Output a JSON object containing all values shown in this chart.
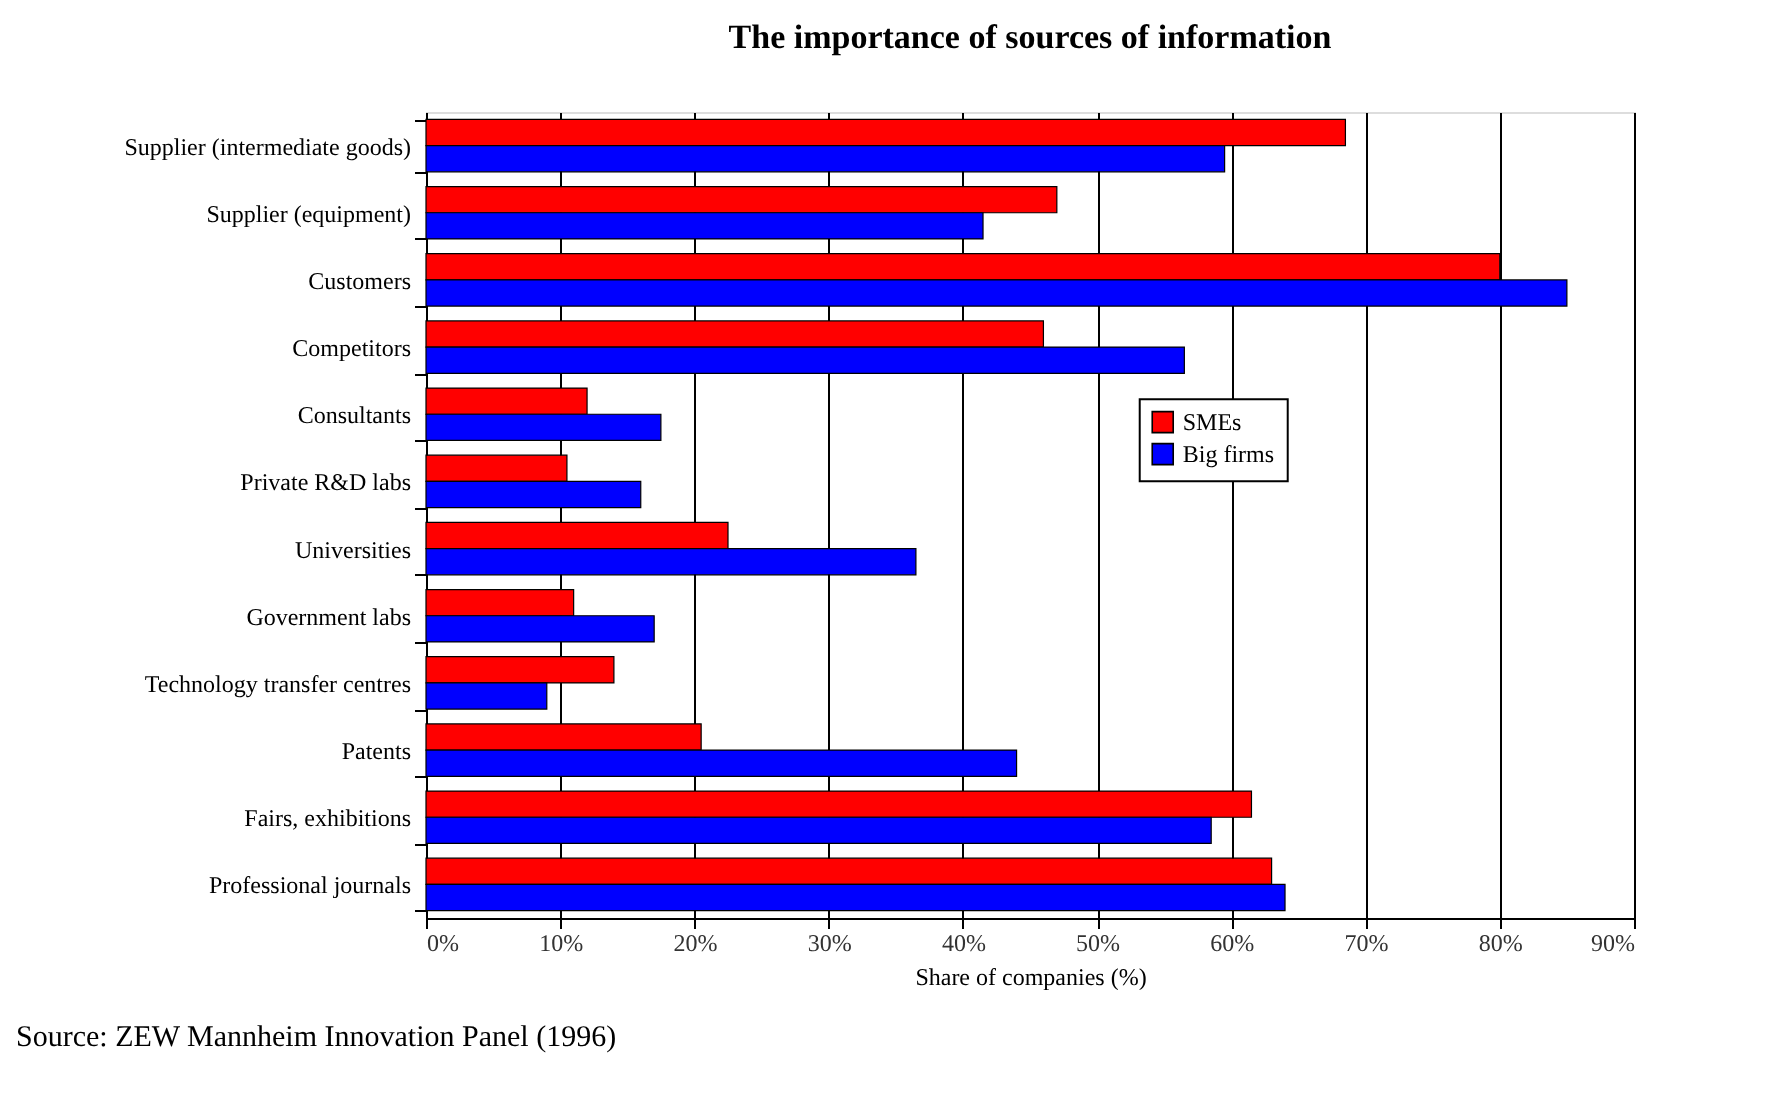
{
  "chart_data": {
    "type": "bar",
    "orientation": "horizontal",
    "title": "The importance of sources of information",
    "xlabel": "Share of companies (%)",
    "categories": [
      "Supplier (intermediate goods)",
      "Supplier (equipment)",
      "Customers",
      "Competitors",
      "Consultants",
      "Private R&D labs",
      "Universities",
      "Government labs",
      "Technology transfer centres",
      "Patents",
      "Fairs, exhibitions",
      "Professional journals"
    ],
    "series": [
      {
        "name": "SMEs",
        "color": "#ff0000",
        "values": [
          68.5,
          47,
          80,
          46,
          12,
          10.5,
          22.5,
          11,
          14,
          20.5,
          61.5,
          63
        ]
      },
      {
        "name": "Big firms",
        "color": "#0000ff",
        "values": [
          59.5,
          41.5,
          85,
          56.5,
          17.5,
          16,
          36.5,
          17,
          9,
          44,
          58.5,
          64
        ]
      }
    ],
    "xlim": [
      0,
      90
    ],
    "xticks": [
      {
        "value": 0,
        "label": "0%"
      },
      {
        "value": 10,
        "label": "10%"
      },
      {
        "value": 20,
        "label": "20%"
      },
      {
        "value": 30,
        "label": "30%"
      },
      {
        "value": 40,
        "label": "40%"
      },
      {
        "value": 50,
        "label": "50%"
      },
      {
        "value": 60,
        "label": "60%"
      },
      {
        "value": 70,
        "label": "70%"
      },
      {
        "value": 80,
        "label": "80%"
      },
      {
        "value": 90,
        "label": "90%"
      }
    ],
    "grid": "x",
    "legend": "right",
    "annotations": [
      "Source: ZEW Mannheim Innovation Panel (1996)"
    ]
  }
}
